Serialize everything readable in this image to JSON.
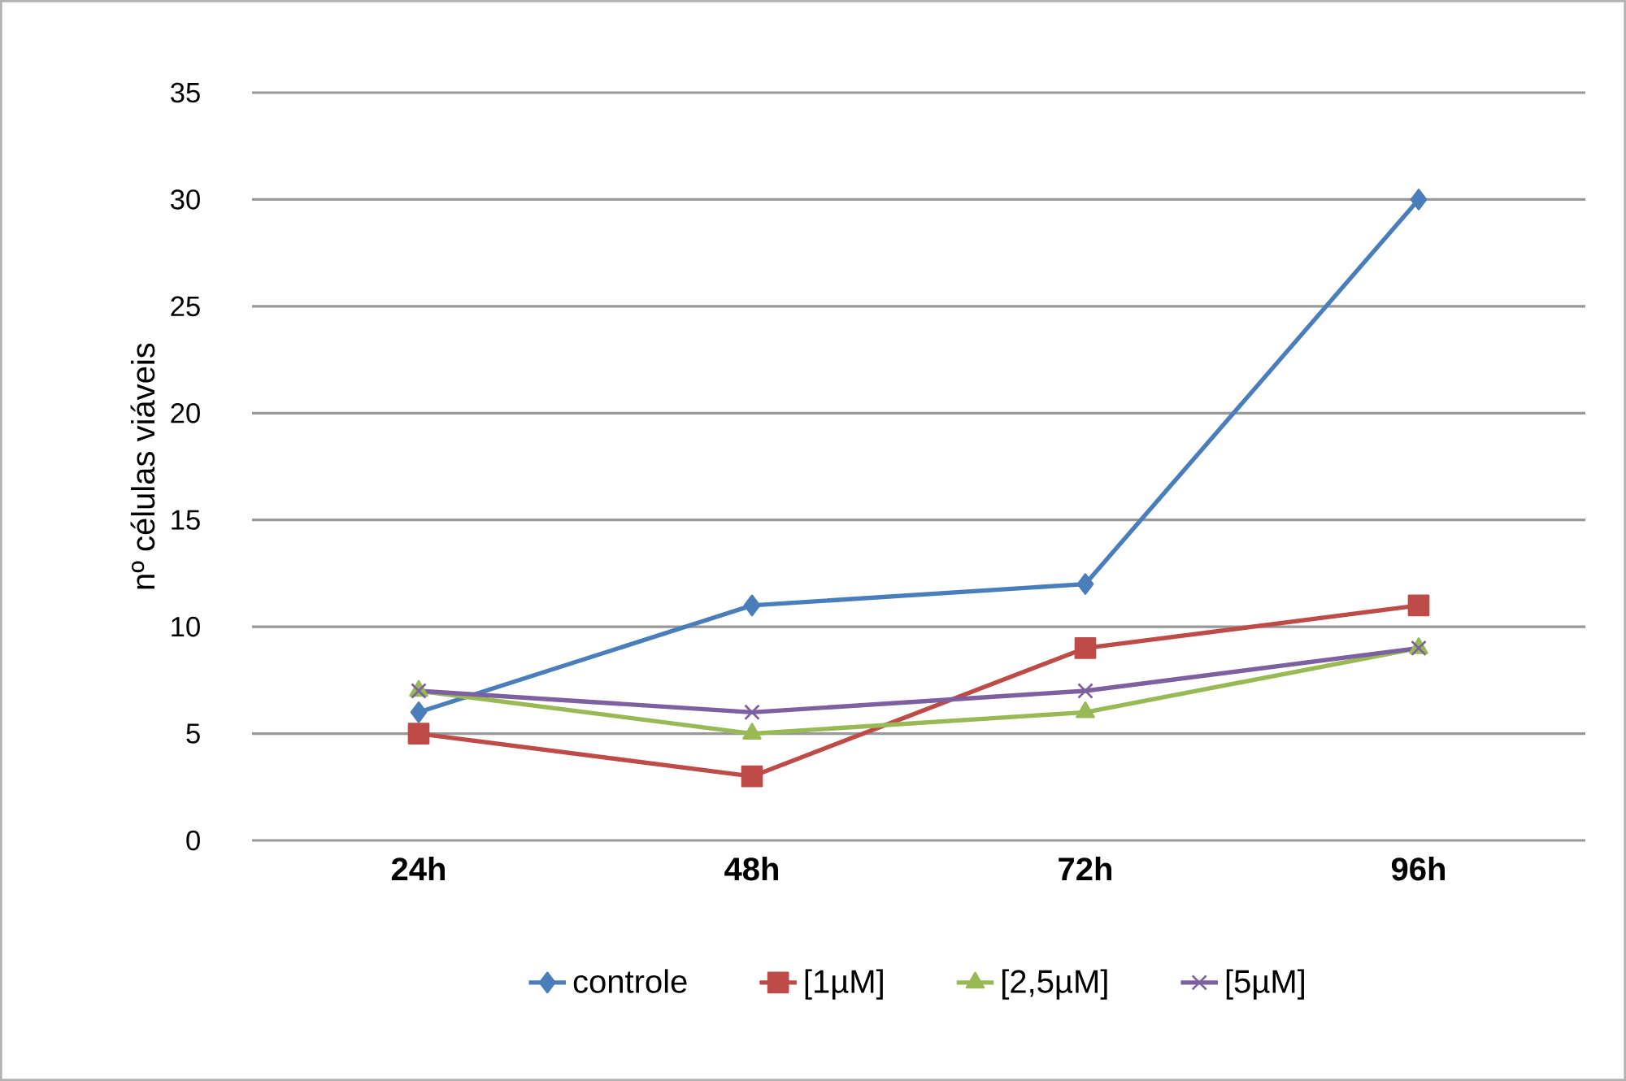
{
  "chart_data": {
    "type": "line",
    "ylabel": "nº células viáveis",
    "categories": [
      "24h",
      "48h",
      "72h",
      "96h"
    ],
    "series": [
      {
        "name": "controle",
        "color": "#4a7ebb",
        "marker": "diamond",
        "values": [
          6,
          11,
          12,
          30
        ]
      },
      {
        "name": "[1µM]",
        "color": "#be4b48",
        "marker": "square",
        "values": [
          5,
          3,
          9,
          11
        ]
      },
      {
        "name": "[2,5µM]",
        "color": "#98b954",
        "marker": "triangle",
        "values": [
          7,
          5,
          6,
          9
        ]
      },
      {
        "name": "[5µM]",
        "color": "#7d60a0",
        "marker": "cross",
        "values": [
          7,
          6,
          7,
          9
        ]
      }
    ],
    "ylim": [
      0,
      35
    ],
    "yticks": [
      0,
      5,
      10,
      15,
      20,
      25,
      30,
      35
    ],
    "grid": "y",
    "legend": "bottom",
    "line_style": "solid"
  }
}
